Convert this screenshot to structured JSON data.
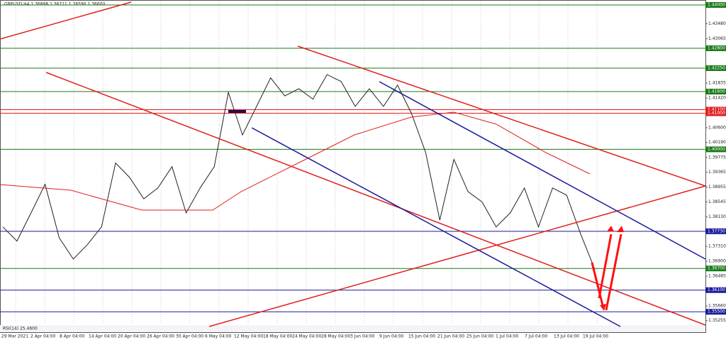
{
  "header": "GBPUSD,H4  1.36898 1.36711 1.36590 1.36600",
  "indicator": "RSI(14) 25.4600",
  "dates": [
    "29 Mar 2021",
    "2 Apr 04:00",
    "8 Apr 04:00",
    "14 Apr 04:00",
    "20 Apr 04:00",
    "26 Apr 04:00",
    "30 Apr 04:00",
    "6 May 04:00",
    "12 May 04:00",
    "18 May 04:00",
    "24 May 04:00",
    "28 May 04:00",
    "3 Jun 04:00",
    "9 Jun 04:00",
    "15 Jun 04:00",
    "21 Jun 04:00",
    "25 Jun 04:00",
    "1 Jul 04:00",
    "7 Jul 04:00",
    "13 Jul 04:00",
    "19 Jul 04:00"
  ],
  "chart_data": {
    "type": "line",
    "ylim": [
      1.3517,
      1.44
    ],
    "yticks": [
      {
        "value": 1.4348,
        "label": "1.43480"
      },
      {
        "value": 1.43065,
        "label": "1.43065"
      },
      {
        "value": 1.41835,
        "label": "1.41835"
      },
      {
        "value": 1.4142,
        "label": "1.41420"
      },
      {
        "value": 1.406,
        "label": "1.40600"
      },
      {
        "value": 1.4019,
        "label": "1.40190"
      },
      {
        "value": 1.39775,
        "label": "1.39775"
      },
      {
        "value": 1.39365,
        "label": "1.39365"
      },
      {
        "value": 1.38955,
        "label": "1.38955"
      },
      {
        "value": 1.38545,
        "label": "1.38545"
      },
      {
        "value": 1.3813,
        "label": "1.38130"
      },
      {
        "value": 1.3731,
        "label": "1.37310"
      },
      {
        "value": 1.369,
        "label": "1.36900"
      },
      {
        "value": 1.36485,
        "label": "1.36485"
      },
      {
        "value": 1.3566,
        "label": "1.35660"
      },
      {
        "value": 1.35255,
        "label": "1.35255"
      }
    ],
    "levels": [
      {
        "value": 1.44,
        "label": "1.44000",
        "color": "#1a7a1a"
      },
      {
        "value": 1.428,
        "label": "1.42800",
        "color": "#1a7a1a"
      },
      {
        "value": 1.4225,
        "label": "1.42250",
        "color": "#1a7a1a"
      },
      {
        "value": 1.416,
        "label": "1.41600",
        "color": "#1a7a1a"
      },
      {
        "value": 1.411,
        "label": "1.41100",
        "color": "#e02020"
      },
      {
        "value": 1.41,
        "label": "1.41000",
        "color": "#e02020"
      },
      {
        "value": 1.4,
        "label": "1.40000",
        "color": "#1a7a1a"
      },
      {
        "value": 1.3773,
        "label": "1.37730",
        "color": "#1a1a9a"
      },
      {
        "value": 1.367,
        "label": "1.36700",
        "color": "#1a7a1a"
      },
      {
        "value": 1.361,
        "label": "1.36100",
        "color": "#1a1a9a"
      },
      {
        "value": 1.355,
        "label": "1.35500",
        "color": "#1a1a9a"
      }
    ],
    "series": [
      {
        "name": "GBPUSD",
        "color": "#222222",
        "values": [
          1.3785,
          1.3746,
          1.3824,
          1.3903,
          1.3755,
          1.3696,
          1.3736,
          1.3785,
          1.3962,
          1.3922,
          1.3863,
          1.3893,
          1.3952,
          1.3824,
          1.3893,
          1.3952,
          1.4158,
          1.404,
          1.4119,
          1.4198,
          1.4148,
          1.4168,
          1.4139,
          1.4207,
          1.4188,
          1.4119,
          1.4168,
          1.4119,
          1.4178,
          1.4099,
          1.3991,
          1.3804,
          1.3972,
          1.3883,
          1.3854,
          1.3785,
          1.3824,
          1.3893,
          1.3785,
          1.3893,
          1.3873,
          1.3765,
          1.3667
        ]
      }
    ]
  }
}
